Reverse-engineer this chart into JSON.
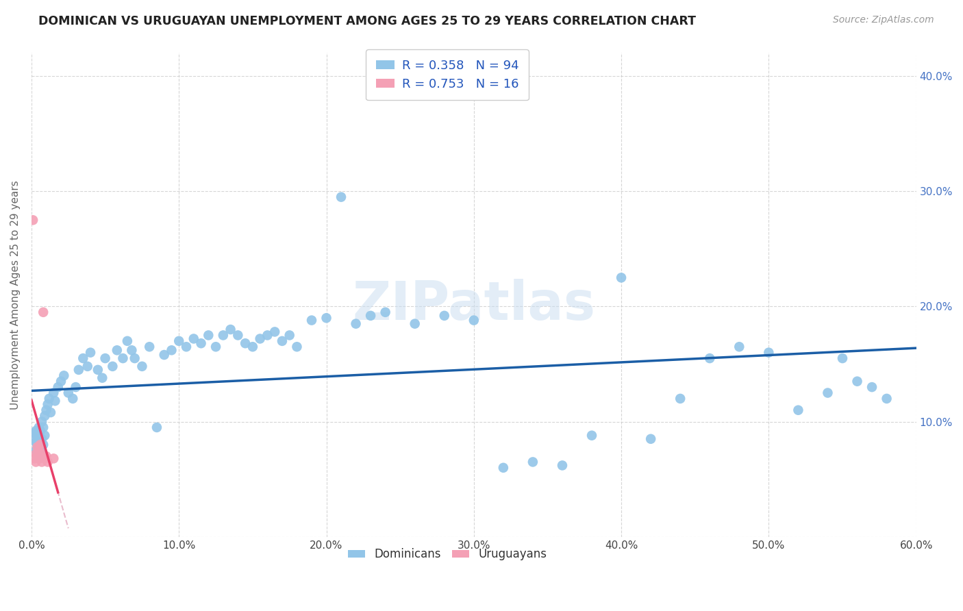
{
  "title": "DOMINICAN VS URUGUAYAN UNEMPLOYMENT AMONG AGES 25 TO 29 YEARS CORRELATION CHART",
  "source": "Source: ZipAtlas.com",
  "ylabel": "Unemployment Among Ages 25 to 29 years",
  "xlim": [
    0.0,
    0.6
  ],
  "ylim": [
    0.0,
    0.42
  ],
  "xticks": [
    0.0,
    0.1,
    0.2,
    0.3,
    0.4,
    0.5,
    0.6
  ],
  "xticklabels": [
    "0.0%",
    "10.0%",
    "20.0%",
    "30.0%",
    "40.0%",
    "50.0%",
    "60.0%"
  ],
  "yticks": [
    0.0,
    0.1,
    0.2,
    0.3,
    0.4
  ],
  "yticklabels": [
    "",
    "10.0%",
    "20.0%",
    "30.0%",
    "40.0%"
  ],
  "dominican_color": "#92C5E8",
  "uruguayan_color": "#F4A0B5",
  "trend_dominican_color": "#1B5EA6",
  "trend_uruguayan_color": "#E8406A",
  "trend_uruguayan_dashed_color": "#E0A0B8",
  "R_dominican": 0.358,
  "N_dominican": 94,
  "R_uruguayan": 0.753,
  "N_uruguayan": 16,
  "dominican_x": [
    0.002,
    0.002,
    0.003,
    0.003,
    0.003,
    0.004,
    0.004,
    0.004,
    0.005,
    0.005,
    0.005,
    0.005,
    0.006,
    0.006,
    0.006,
    0.007,
    0.007,
    0.007,
    0.008,
    0.008,
    0.009,
    0.009,
    0.01,
    0.011,
    0.012,
    0.013,
    0.015,
    0.016,
    0.018,
    0.02,
    0.022,
    0.025,
    0.028,
    0.03,
    0.032,
    0.035,
    0.038,
    0.04,
    0.045,
    0.048,
    0.05,
    0.055,
    0.058,
    0.062,
    0.065,
    0.068,
    0.07,
    0.075,
    0.08,
    0.085,
    0.09,
    0.095,
    0.1,
    0.105,
    0.11,
    0.115,
    0.12,
    0.125,
    0.13,
    0.135,
    0.14,
    0.145,
    0.15,
    0.155,
    0.16,
    0.165,
    0.17,
    0.175,
    0.18,
    0.19,
    0.2,
    0.21,
    0.22,
    0.23,
    0.24,
    0.26,
    0.28,
    0.3,
    0.32,
    0.34,
    0.36,
    0.38,
    0.4,
    0.42,
    0.44,
    0.46,
    0.48,
    0.5,
    0.52,
    0.54,
    0.55,
    0.56,
    0.57,
    0.58
  ],
  "dominican_y": [
    0.085,
    0.09,
    0.075,
    0.082,
    0.092,
    0.07,
    0.08,
    0.088,
    0.068,
    0.078,
    0.085,
    0.095,
    0.072,
    0.082,
    0.092,
    0.075,
    0.085,
    0.1,
    0.08,
    0.095,
    0.105,
    0.088,
    0.11,
    0.115,
    0.12,
    0.108,
    0.125,
    0.118,
    0.13,
    0.135,
    0.14,
    0.125,
    0.12,
    0.13,
    0.145,
    0.155,
    0.148,
    0.16,
    0.145,
    0.138,
    0.155,
    0.148,
    0.162,
    0.155,
    0.17,
    0.162,
    0.155,
    0.148,
    0.165,
    0.095,
    0.158,
    0.162,
    0.17,
    0.165,
    0.172,
    0.168,
    0.175,
    0.165,
    0.175,
    0.18,
    0.175,
    0.168,
    0.165,
    0.172,
    0.175,
    0.178,
    0.17,
    0.175,
    0.165,
    0.188,
    0.19,
    0.295,
    0.185,
    0.192,
    0.195,
    0.185,
    0.192,
    0.188,
    0.06,
    0.065,
    0.062,
    0.088,
    0.225,
    0.085,
    0.12,
    0.155,
    0.165,
    0.16,
    0.11,
    0.125,
    0.155,
    0.135,
    0.13,
    0.12
  ],
  "uruguayan_x": [
    0.001,
    0.002,
    0.003,
    0.003,
    0.004,
    0.004,
    0.005,
    0.005,
    0.006,
    0.007,
    0.007,
    0.008,
    0.009,
    0.01,
    0.011,
    0.015
  ],
  "uruguayan_y": [
    0.275,
    0.068,
    0.065,
    0.072,
    0.07,
    0.078,
    0.068,
    0.075,
    0.08,
    0.072,
    0.065,
    0.195,
    0.068,
    0.07,
    0.065,
    0.068
  ],
  "watermark": "ZIPatlas",
  "background_color": "#ffffff",
  "grid_color": "#cccccc",
  "title_color": "#222222",
  "axis_label_color": "#666666"
}
